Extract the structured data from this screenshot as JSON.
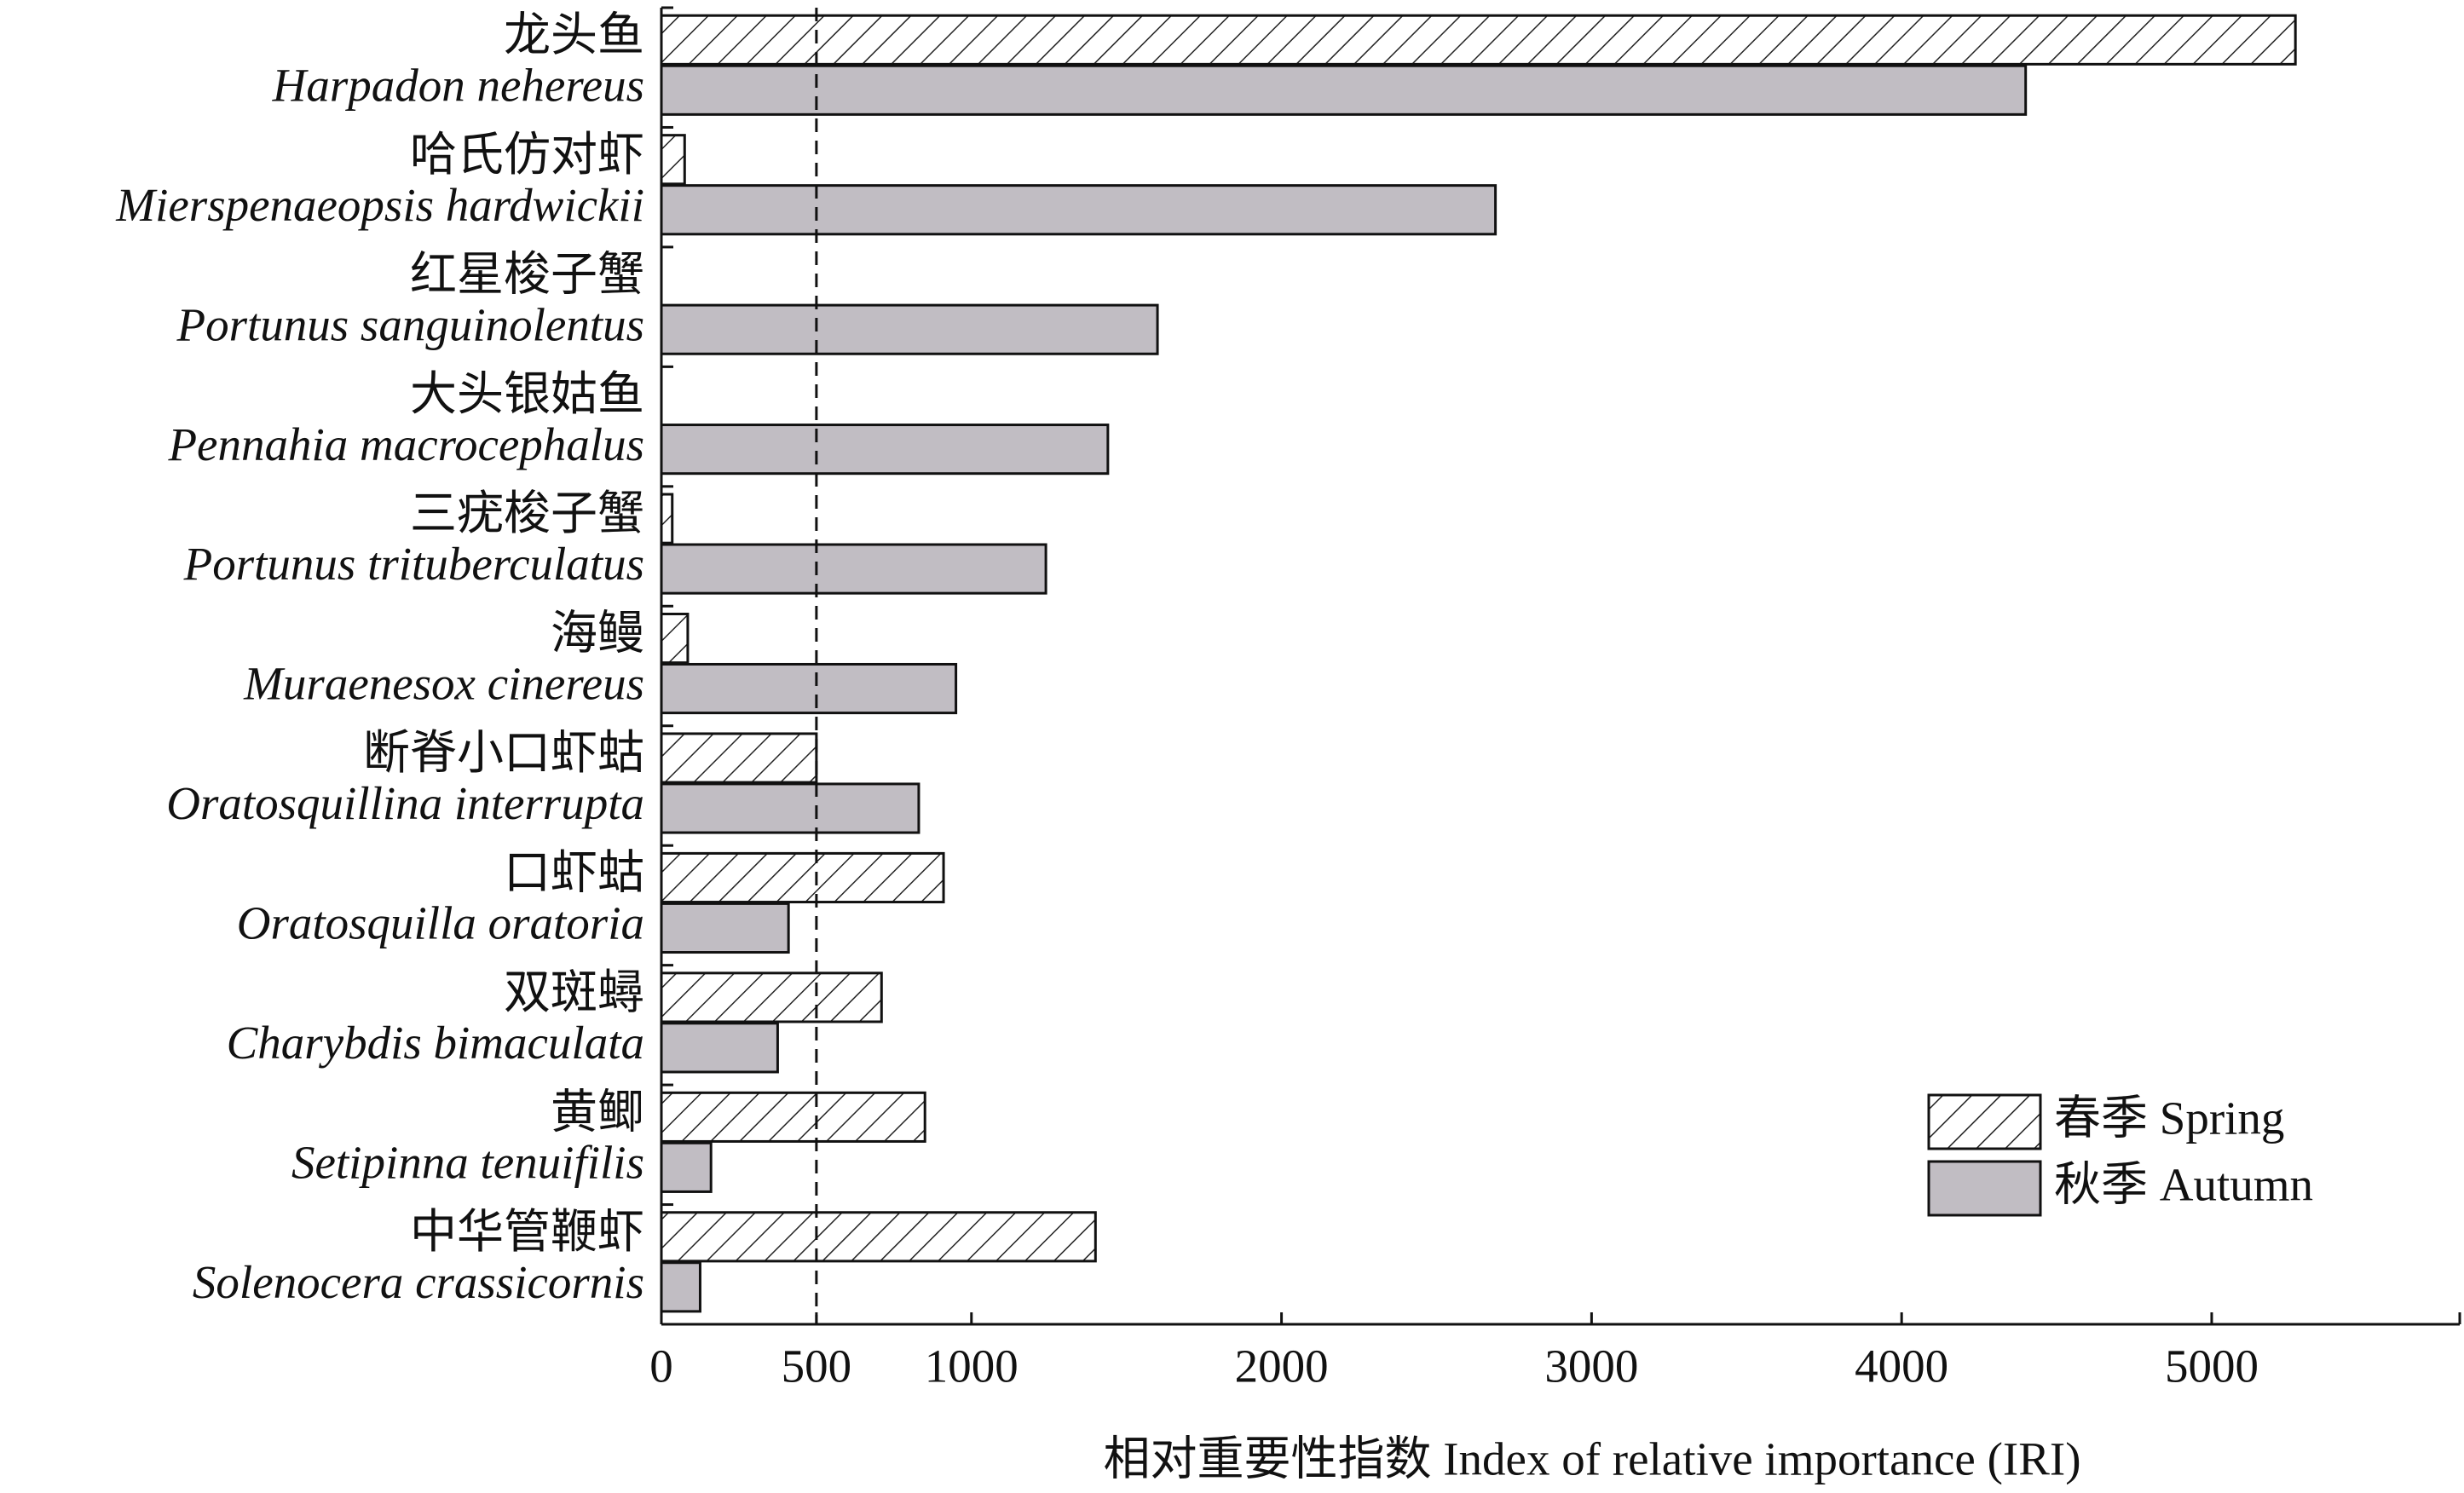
{
  "chart_data": {
    "type": "hbar",
    "xlabel": "相对重要性指数 Index of relative importance (IRI)",
    "categories": [
      "龙头鱼",
      "哈氏仿对虾",
      "红星梭子蟹",
      "大头银姑鱼",
      "三疣梭子蟹",
      "海鳗",
      "断脊小口虾蛄",
      "口虾蛄",
      "双斑蟳",
      "黄鲫",
      "中华管鞭虾"
    ],
    "categories_latin": [
      "Harpadon nehereus",
      "Mierspenaeopsis hardwickii",
      "Portunus sanguinolentus",
      "Pennahia macrocephalus",
      "Portunus trituberculatus",
      "Muraenesox cinereus",
      "Oratosquillina interrupta",
      "Oratosquilla oratoria",
      "Charybdis bimaculata",
      "Setipinna tenuifilis",
      "Solenocera crassicornis"
    ],
    "series": [
      {
        "name": "春季 Spring",
        "color": "#ffffff",
        "pattern": "hatch",
        "values": [
          5270,
          75,
          0,
          0,
          35,
          85,
          500,
          910,
          710,
          850,
          1400
        ]
      },
      {
        "name": "秋季 Autumn",
        "color": "#c1bdc3",
        "values": [
          4400,
          2690,
          1600,
          1440,
          1240,
          950,
          830,
          410,
          375,
          160,
          125
        ]
      }
    ],
    "xlim": [
      0,
      5800
    ],
    "xticks": [
      0,
      500,
      1000,
      2000,
      3000,
      4000,
      5000
    ],
    "reference_line": 500,
    "legend": "lower right"
  }
}
